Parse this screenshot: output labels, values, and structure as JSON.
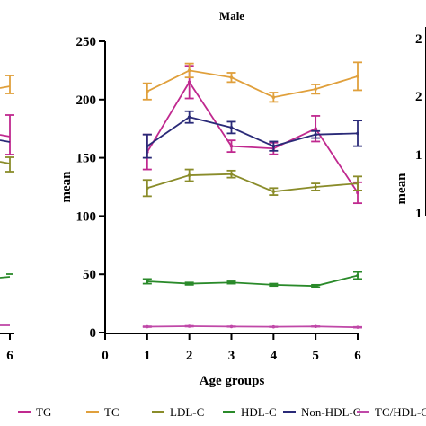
{
  "chart_data": {
    "type": "line",
    "title": "Male",
    "xlabel": "Age groups",
    "ylabel": "mean",
    "x": [
      1,
      2,
      3,
      4,
      5,
      6
    ],
    "xlim": [
      0,
      6
    ],
    "ylim": [
      0,
      250
    ],
    "xticks": [
      "0",
      "1",
      "2",
      "3",
      "4",
      "5",
      "6"
    ],
    "yticks": [
      "0",
      "50",
      "100",
      "150",
      "200",
      "250"
    ],
    "error_bars": true,
    "legend_position": "bottom",
    "series": [
      {
        "name": "TG",
        "color": "#c0298f",
        "values": [
          155,
          215,
          160,
          158,
          175,
          120
        ],
        "errors": [
          15,
          14,
          5,
          5,
          11,
          9
        ]
      },
      {
        "name": "TC",
        "color": "#e0a03c",
        "values": [
          207,
          225,
          219,
          202,
          209,
          220
        ],
        "errors": [
          7,
          6,
          4,
          4,
          4,
          12
        ]
      },
      {
        "name": "LDL-C",
        "color": "#8a8c2a",
        "values": [
          124,
          135,
          136,
          121,
          125,
          128
        ],
        "errors": [
          7,
          5,
          3,
          3,
          3,
          6
        ]
      },
      {
        "name": "HDL-C",
        "color": "#2a8a2a",
        "values": [
          44,
          42,
          43,
          41,
          40,
          49
        ],
        "errors": [
          2,
          1,
          1,
          1,
          1,
          3
        ]
      },
      {
        "name": "Non-HDL-C",
        "color": "#2a2a78",
        "values": [
          160,
          185,
          176,
          160,
          170,
          171
        ],
        "errors": [
          10,
          5,
          5,
          4,
          3,
          11
        ]
      },
      {
        "name": "TC/HDL-C ratio",
        "color": "#c048a8",
        "values": [
          5,
          5.4,
          5.1,
          4.9,
          5.2,
          4.5
        ],
        "errors": [
          0.3,
          0.3,
          0.2,
          0.2,
          0.2,
          0.3
        ]
      }
    ],
    "left_panel": {
      "tick_label": "6",
      "tcHdlLegend": "TC/HDL-C ra"
    },
    "right_panel": {
      "ytick_labels": [
        "2",
        "2",
        "1",
        "1"
      ],
      "ylabel": "mean"
    }
  }
}
